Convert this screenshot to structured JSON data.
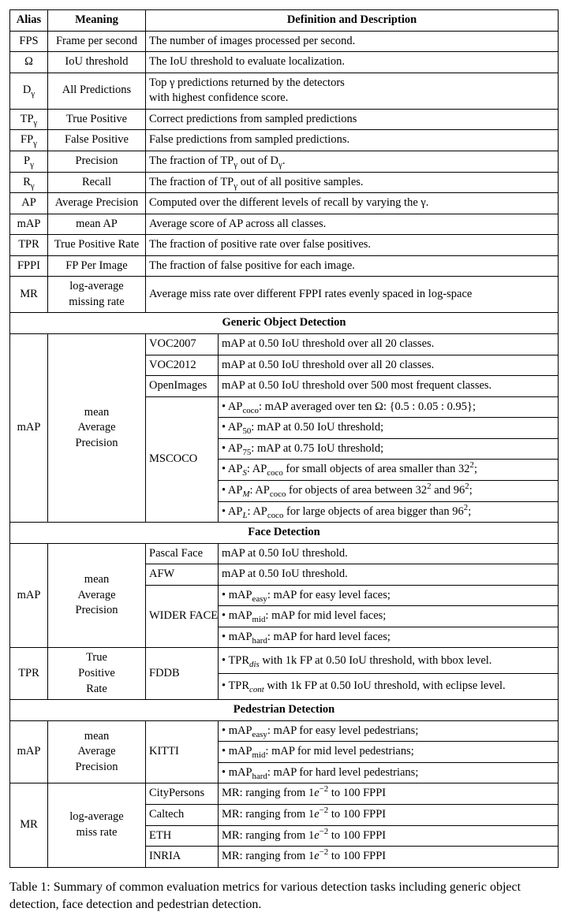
{
  "headers": {
    "alias": "Alias",
    "meaning": "Meaning",
    "def": "Definition and Description"
  },
  "basicRows": [
    {
      "alias": "FPS",
      "meaning": "Frame per second",
      "def": "The number of images processed per second."
    },
    {
      "alias": "Ω",
      "meaning": "IoU threshold",
      "def": "The IoU threshold to evaluate localization."
    },
    {
      "alias": "D<sub>γ</sub>",
      "meaning": "All Predictions",
      "def": "Top γ predictions returned by the detectors<br>with highest confidence score."
    },
    {
      "alias": "TP<sub>γ</sub>",
      "meaning": "True Positive",
      "def": "Correct predictions from sampled predictions"
    },
    {
      "alias": "FP<sub>γ</sub>",
      "meaning": "False Positive",
      "def": "False predictions from sampled predictions."
    },
    {
      "alias": "P<sub>γ</sub>",
      "meaning": "Precision",
      "def": "The fraction of TP<sub>γ</sub> out of D<sub>γ</sub>."
    },
    {
      "alias": "R<sub>γ</sub>",
      "meaning": "Recall",
      "def": "The fraction of TP<sub>γ</sub> out of all positive samples."
    },
    {
      "alias": "AP",
      "meaning": "Average Precision",
      "def": "Computed over the different levels of recall by varying the γ."
    },
    {
      "alias": "mAP",
      "meaning": "mean AP",
      "def": "Average score of AP across all classes."
    },
    {
      "alias": "TPR",
      "meaning": "True Positive Rate",
      "def": "The fraction of positive rate over false positives."
    },
    {
      "alias": "FPPI",
      "meaning": "FP Per Image",
      "def": "The fraction of false positive for each image."
    },
    {
      "alias": "MR",
      "meaning": "log-average<br>missing rate",
      "def": "Average miss rate over different FPPI rates evenly spaced in log-space"
    }
  ],
  "sections": {
    "generic": "Generic Object Detection",
    "face": "Face Detection",
    "pedestrian": "Pedestrian Detection"
  },
  "generic": {
    "alias": "mAP",
    "meaning": "mean<br>Average<br>Precision",
    "rows": [
      {
        "sub": "VOC2007",
        "def": "mAP at 0.50 IoU threshold over all 20 classes."
      },
      {
        "sub": "VOC2012",
        "def": "mAP at 0.50 IoU threshold over all 20 classes."
      },
      {
        "sub": "OpenImages",
        "def": "mAP at 0.50 IoU threshold over 500 most frequent classes."
      }
    ],
    "mscoco": {
      "sub": "MSCOCO",
      "lines": [
        "• AP<sub>coco</sub>: mAP averaged over ten Ω: {0.5 : 0.05 : 0.95};",
        "• AP<sub>50</sub>: mAP at 0.50 IoU threshold;",
        "• AP<sub>75</sub>: mAP at 0.75 IoU threshold;",
        "• AP<sub><i>S</i></sub>: AP<sub>coco</sub> for small objects of area smaller than 32<sup>2</sup>;",
        "• AP<sub><i>M</i></sub>: AP<sub>coco</sub> for objects of area between 32<sup>2</sup> and 96<sup>2</sup>;",
        "• AP<sub><i>L</i></sub>: AP<sub>coco</sub> for large objects of area bigger than 96<sup>2</sup>;"
      ]
    }
  },
  "face": {
    "map": {
      "alias": "mAP",
      "meaning": "mean<br>Average<br>Precision",
      "rows": [
        {
          "sub": "Pascal Face",
          "def": "mAP at 0.50 IoU threshold."
        },
        {
          "sub": "AFW",
          "def": "mAP at 0.50 IoU threshold."
        }
      ],
      "wider": {
        "sub": "WIDER FACE",
        "lines": [
          "• mAP<sub>easy</sub>: mAP for easy level faces;",
          "• mAP<sub>mid</sub>: mAP for mid level faces;",
          "• mAP<sub>hard</sub>: mAP for hard level faces;"
        ]
      }
    },
    "tpr": {
      "alias": "TPR",
      "meaning": "True<br>Positive<br>Rate",
      "sub": "FDDB",
      "lines": [
        "• TPR<sub><i>dis</i></sub> with 1k FP at 0.50 IoU threshold, with bbox level.",
        "• TPR<sub><i>cont</i></sub> with 1k FP at 0.50 IoU threshold, with eclipse level."
      ]
    }
  },
  "pedestrian": {
    "map": {
      "alias": "mAP",
      "meaning": "mean<br>Average<br>Precision",
      "sub": "KITTI",
      "lines": [
        "• mAP<sub>easy</sub>: mAP for easy level pedestrians;",
        "• mAP<sub>mid</sub>: mAP for mid level pedestrians;",
        "• mAP<sub>hard</sub>: mAP for hard level pedestrians;"
      ]
    },
    "mr": {
      "alias": "MR",
      "meaning": "log-average<br>miss rate",
      "rows": [
        {
          "sub": "CityPersons",
          "def": "MR: ranging from 1<i>e</i><sup>−2</sup> to 100 FPPI"
        },
        {
          "sub": "Caltech",
          "def": "MR: ranging from 1<i>e</i><sup>−2</sup> to 100 FPPI"
        },
        {
          "sub": "ETH",
          "def": "MR: ranging from 1<i>e</i><sup>−2</sup> to 100 FPPI"
        },
        {
          "sub": "INRIA",
          "def": "MR: ranging from 1<i>e</i><sup>−2</sup> to 100 FPPI"
        }
      ]
    }
  },
  "caption": "Table 1: Summary of common evaluation metrics for various detection tasks including generic object detection, face detection and pedestrian detection."
}
